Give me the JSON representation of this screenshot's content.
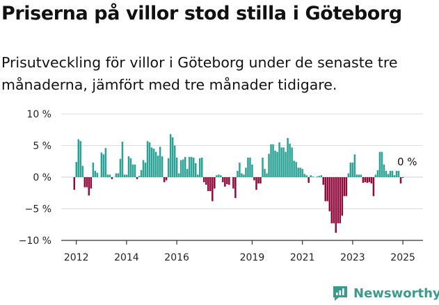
{
  "title": "Priserna på villor stod stilla i Göteborg",
  "subtitle": "Prisutveckling för villor i Göteborg under de senaste tre månaderna, jämfört med tre månader tidigare.",
  "brand": {
    "name": "Newsworthy",
    "icon": "newsworthy-logo-icon"
  },
  "colors": {
    "positive": "#2aa396",
    "negative": "#8e0b3b",
    "grid": "#dddddd",
    "axis": "#333333",
    "text": "#111111"
  },
  "chart_data": {
    "type": "bar",
    "ylim": [
      -10,
      10
    ],
    "yticks": [
      {
        "value": 10,
        "label": "10 %"
      },
      {
        "value": 5,
        "label": "5 %"
      },
      {
        "value": 0,
        "label": "0 %"
      },
      {
        "value": -5,
        "label": "−5 %"
      },
      {
        "value": -10,
        "label": "−10 %"
      }
    ],
    "xticks": [
      {
        "value": 2012,
        "label": "2012"
      },
      {
        "value": 2014,
        "label": "2014"
      },
      {
        "value": 2016,
        "label": "2016"
      },
      {
        "value": 2019,
        "label": "2019"
      },
      {
        "value": 2021,
        "label": "2021"
      },
      {
        "value": 2023,
        "label": "2023"
      },
      {
        "value": 2025,
        "label": "2025"
      }
    ],
    "x_start": 2011.92,
    "step": 0.0833,
    "annotation": {
      "label": "0 %"
    },
    "values": [
      -2.0,
      2.4,
      6.0,
      5.7,
      1.8,
      -1.6,
      -1.6,
      -2.9,
      -1.8,
      2.3,
      1.0,
      0.7,
      0,
      3.9,
      3.6,
      4.6,
      0.4,
      0.4,
      -0.3,
      0,
      0.6,
      0.6,
      2.9,
      5.6,
      0.4,
      0.4,
      3.3,
      3.0,
      2.0,
      2.0,
      -0.3,
      0.2,
      1.1,
      2.7,
      2.3,
      5.7,
      5.5,
      4.7,
      4.5,
      4.0,
      3.4,
      4.8,
      3.3,
      -0.8,
      -0.5,
      3.0,
      6.8,
      6.3,
      5.0,
      3.1,
      0.6,
      2.7,
      2.8,
      3.2,
      1.3,
      3.2,
      3.2,
      3.1,
      2.2,
      0.4,
      3.0,
      3.1,
      -0.8,
      -1.2,
      -2.2,
      -2.2,
      -3.8,
      -1.8,
      0.3,
      0.4,
      0.3,
      -0.8,
      -1.5,
      -1.1,
      -1.2,
      0,
      -1.8,
      -3.3,
      1.0,
      2.3,
      0.6,
      0.4,
      1.5,
      3.1,
      3.1,
      2.0,
      -0.5,
      -2.0,
      -1.0,
      -1.0,
      3.1,
      1.3,
      0.6,
      3.7,
      5.2,
      5.2,
      4.2,
      4.0,
      5.5,
      4.7,
      4.7,
      4.0,
      6.2,
      5.3,
      4.7,
      2.6,
      2.4,
      1.5,
      1.5,
      1.3,
      0.5,
      0.3,
      -0.9,
      0.3,
      0.1,
      0,
      0.1,
      0.2,
      0.3,
      -1.2,
      -3.8,
      -3.8,
      -5.4,
      -7.3,
      -7.3,
      -8.8,
      -7.3,
      -7.3,
      -6.1,
      -3.0,
      -3.0,
      0.6,
      2.3,
      2.3,
      3.6,
      0.4,
      0.4,
      0.4,
      -0.9,
      -0.8,
      -0.9,
      -0.8,
      -1.0,
      -3.0,
      0.4,
      1.1,
      4.0,
      4.0,
      2.0,
      1.0,
      0.5,
      1.0,
      1.0,
      0.3,
      1.0,
      1.0,
      -1.0,
      -0.1
    ]
  }
}
